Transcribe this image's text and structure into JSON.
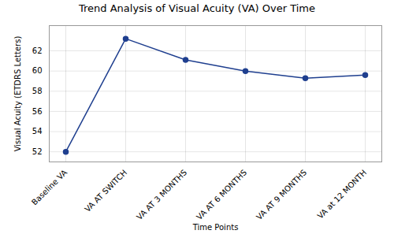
{
  "chart_data": {
    "type": "line",
    "title": "Trend Analysis of Visual Acuity (VA) Over Time",
    "x_label": "Time Points",
    "y_label": "Visual Acuity (ETDRS Letters)",
    "categories": [
      "Baseline VA",
      "VA AT SWITCH",
      "VA AT 3 MONTHS",
      "VA AT 6 MONTHS",
      "VA AT 9 MONTHS",
      "VA at 12 MONTH"
    ],
    "values": [
      52.0,
      63.2,
      61.1,
      60.0,
      59.3,
      59.6
    ],
    "color": "#1f3f8f",
    "marker": "circle",
    "ylim": [
      51.0,
      64.5
    ],
    "yticks": [
      52,
      54,
      56,
      58,
      60,
      62
    ],
    "grid": true
  }
}
